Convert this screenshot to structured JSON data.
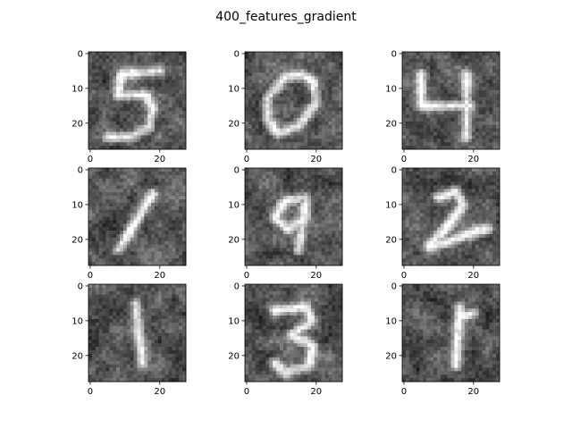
{
  "chart_data": {
    "type": "heatmap",
    "title": "400_features_gradient",
    "colormap": "gray",
    "image_size": [
      28,
      28
    ],
    "grid": [
      3,
      3
    ],
    "xticks": [
      0,
      20
    ],
    "yticks": [
      0,
      10,
      20
    ],
    "subplots": [
      {
        "digit": "5",
        "strokes": [
          [
            [
              20,
              5
            ],
            [
              9,
              6
            ]
          ],
          [
            [
              9,
              6
            ],
            [
              8,
              12
            ]
          ],
          [
            [
              8,
              12
            ],
            [
              16,
              12
            ]
          ],
          [
            [
              16,
              12
            ],
            [
              18,
              16
            ]
          ],
          [
            [
              18,
              16
            ],
            [
              17,
              21
            ]
          ],
          [
            [
              17,
              21
            ],
            [
              12,
              24
            ]
          ],
          [
            [
              12,
              24
            ],
            [
              5,
              24
            ]
          ]
        ]
      },
      {
        "digit": "0",
        "strokes": [
          [
            [
              16,
              6
            ],
            [
              11,
              7
            ]
          ],
          [
            [
              11,
              7
            ],
            [
              6,
              13
            ]
          ],
          [
            [
              6,
              13
            ],
            [
              6,
              19
            ]
          ],
          [
            [
              6,
              19
            ],
            [
              9,
              23
            ]
          ],
          [
            [
              9,
              23
            ],
            [
              15,
              21
            ]
          ],
          [
            [
              15,
              21
            ],
            [
              20,
              14
            ]
          ],
          [
            [
              20,
              14
            ],
            [
              19,
              8
            ]
          ],
          [
            [
              19,
              8
            ],
            [
              16,
              6
            ]
          ]
        ]
      },
      {
        "digit": "4",
        "strokes": [
          [
            [
              5,
              6
            ],
            [
              5,
              15
            ]
          ],
          [
            [
              5,
              15
            ],
            [
              19,
              15
            ]
          ],
          [
            [
              18,
              6
            ],
            [
              18,
              24
            ]
          ]
        ]
      },
      {
        "digit": "1",
        "strokes": [
          [
            [
              18,
              7
            ],
            [
              8,
              23
            ]
          ]
        ]
      },
      {
        "digit": "9",
        "strokes": [
          [
            [
              17,
              8
            ],
            [
              11,
              9
            ]
          ],
          [
            [
              11,
              9
            ],
            [
              8,
              14
            ]
          ],
          [
            [
              8,
              14
            ],
            [
              12,
              17
            ]
          ],
          [
            [
              12,
              17
            ],
            [
              17,
              14
            ]
          ],
          [
            [
              17,
              14
            ],
            [
              17,
              8
            ]
          ],
          [
            [
              17,
              8
            ],
            [
              15,
              23
            ]
          ]
        ]
      },
      {
        "digit": "2",
        "strokes": [
          [
            [
              10,
              8
            ],
            [
              15,
              6
            ]
          ],
          [
            [
              15,
              6
            ],
            [
              17,
              10
            ]
          ],
          [
            [
              17,
              10
            ],
            [
              12,
              17
            ]
          ],
          [
            [
              12,
              17
            ],
            [
              7,
              22
            ]
          ],
          [
            [
              7,
              22
            ],
            [
              12,
              21
            ]
          ],
          [
            [
              12,
              21
            ],
            [
              20,
              18
            ]
          ],
          [
            [
              20,
              18
            ],
            [
              24,
              17
            ]
          ]
        ]
      },
      {
        "digit": "1",
        "strokes": [
          [
            [
              13,
              5
            ],
            [
              15,
              22
            ]
          ]
        ]
      },
      {
        "digit": "3",
        "strokes": [
          [
            [
              8,
              7
            ],
            [
              17,
              6
            ]
          ],
          [
            [
              17,
              6
            ],
            [
              19,
              10
            ]
          ],
          [
            [
              19,
              10
            ],
            [
              13,
              14
            ]
          ],
          [
            [
              13,
              14
            ],
            [
              19,
              17
            ]
          ],
          [
            [
              19,
              17
            ],
            [
              18,
              23
            ]
          ],
          [
            [
              18,
              23
            ],
            [
              11,
              25
            ]
          ],
          [
            [
              11,
              25
            ],
            [
              8,
              22
            ]
          ]
        ]
      },
      {
        "digit": "1",
        "strokes": [
          [
            [
              16,
              6
            ],
            [
              15,
              23
            ]
          ],
          [
            [
              16,
              9
            ],
            [
              20,
              8
            ]
          ]
        ]
      }
    ]
  }
}
